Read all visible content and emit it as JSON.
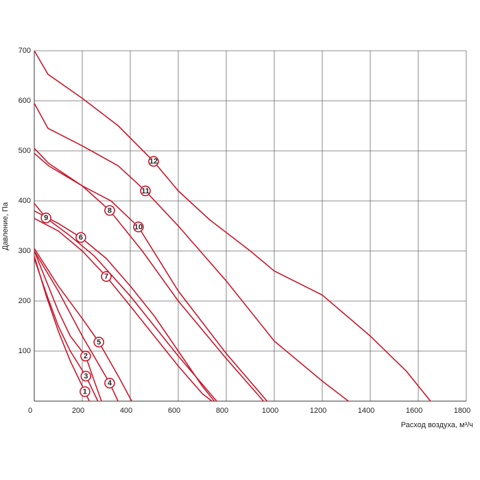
{
  "chart_data": {
    "type": "line",
    "xlabel": "Расход воздуха, м³/ч",
    "ylabel": "Давление, Па",
    "xlim": [
      0,
      1800
    ],
    "xticks": [
      0,
      200,
      400,
      600,
      800,
      1000,
      1200,
      1400,
      1600,
      1800
    ],
    "ylim": [
      0,
      700
    ],
    "yticks": [
      100,
      200,
      300,
      400,
      500,
      600,
      700
    ],
    "grid": true,
    "series": [
      {
        "name": "1",
        "color": "#c8162b",
        "x": [
          0,
          50,
          100,
          150,
          211,
          229
        ],
        "values": [
          290,
          210,
          140,
          80,
          19,
          0
        ]
      },
      {
        "name": "2",
        "color": "#c8162b",
        "x": [
          0,
          50,
          100,
          150,
          214,
          250,
          280
        ],
        "values": [
          300,
          240,
          180,
          130,
          90,
          40,
          0
        ]
      },
      {
        "name": "3",
        "color": "#c8162b",
        "x": [
          0,
          50,
          100,
          150,
          215,
          265
        ],
        "values": [
          285,
          215,
          150,
          100,
          50,
          0
        ]
      },
      {
        "name": "4",
        "color": "#c8162b",
        "x": [
          0,
          100,
          200,
          314,
          349
        ],
        "values": [
          300,
          220,
          130,
          36,
          0
        ]
      },
      {
        "name": "5",
        "color": "#c8162b",
        "x": [
          0,
          100,
          200,
          269,
          350,
          406
        ],
        "values": [
          305,
          230,
          165,
          118,
          50,
          0
        ]
      },
      {
        "name": "6",
        "color": "#c8162b",
        "x": [
          0,
          100,
          194,
          300,
          400,
          500,
          600,
          700,
          750
        ],
        "values": [
          380,
          355,
          327,
          285,
          230,
          170,
          100,
          30,
          0
        ]
      },
      {
        "name": "7",
        "color": "#c8162b",
        "x": [
          0,
          100,
          200,
          300,
          400,
          500,
          600,
          700,
          740
        ],
        "values": [
          365,
          340,
          300,
          249,
          190,
          130,
          70,
          15,
          0
        ]
      },
      {
        "name": "8",
        "color": "#c8162b",
        "x": [
          0,
          60,
          200,
          314,
          450,
          600,
          800,
          955
        ],
        "values": [
          505,
          475,
          430,
          381,
          300,
          200,
          85,
          0
        ]
      },
      {
        "name": "9",
        "color": "#c8162b",
        "x": [
          0,
          49,
          150,
          250,
          400,
          500,
          600,
          760
        ],
        "values": [
          395,
          366,
          330,
          290,
          210,
          150,
          90,
          0
        ]
      },
      {
        "name": "10",
        "color": "#c8162b",
        "x": [
          0,
          60,
          200,
          320,
          434,
          600,
          800,
          970
        ],
        "values": [
          495,
          470,
          430,
          400,
          348,
          220,
          95,
          0
        ]
      },
      {
        "name": "11",
        "color": "#c8162b",
        "x": [
          0,
          57,
          200,
          350,
          463,
          600,
          800,
          1000,
          1200,
          1309
        ],
        "values": [
          595,
          545,
          510,
          470,
          420,
          350,
          240,
          120,
          40,
          0
        ]
      },
      {
        "name": "12",
        "color": "#c8162b",
        "x": [
          0,
          57,
          200,
          350,
          497,
          600,
          729,
          900,
          1000,
          1200,
          1400,
          1550,
          1651
        ],
        "values": [
          700,
          653,
          605,
          550,
          479,
          420,
          363,
          300,
          260,
          212,
          130,
          60,
          0
        ]
      }
    ]
  }
}
